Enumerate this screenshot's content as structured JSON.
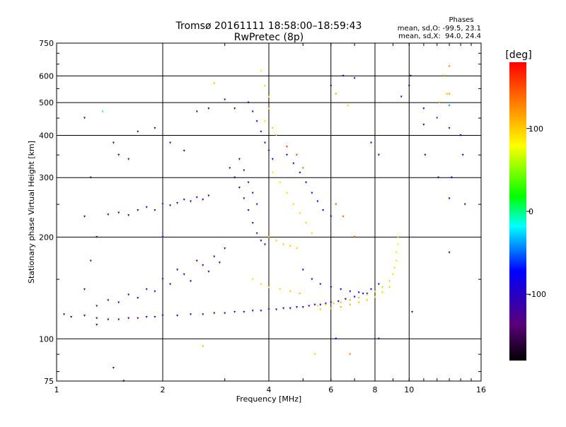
{
  "chart_data": {
    "type": "scatter",
    "title": "Tromsø 20161111 18:58:00–18:59:43",
    "subtitle": "RwPretec (8p)",
    "stats_header": "Phases",
    "stats_line1": "mean, sd,O: -99.5, 23.1",
    "stats_line2": "mean, sd,X:  94.0, 24.4",
    "xlabel": "Frequency [MHz]",
    "ylabel": "Stationary phase Virtual Height [km]",
    "xscale": "log",
    "yscale": "log",
    "xlim": [
      1,
      16
    ],
    "ylim": [
      75,
      750
    ],
    "x_ticks": [
      1,
      2,
      4,
      6,
      8,
      10,
      16
    ],
    "x_tick_labels": [
      "1",
      "2",
      "4",
      "6",
      "8",
      "10",
      "16"
    ],
    "y_ticks": [
      75,
      100,
      200,
      300,
      400,
      500,
      600,
      750
    ],
    "y_tick_labels": [
      "75",
      "100",
      "200",
      "300",
      "400",
      "500",
      "600",
      "750"
    ],
    "grid": true,
    "colorbar": {
      "label": "[deg]",
      "range": [
        -180,
        180
      ],
      "ticks": [
        100,
        0,
        -100
      ],
      "tick_labels": [
        "100",
        "0",
        "-100"
      ],
      "colors": [
        "#000000",
        "#5a0078",
        "#0000ff",
        "#00ffff",
        "#00ff00",
        "#ffff00",
        "#ff8000",
        "#ff0000"
      ]
    },
    "series": [
      {
        "description_key": "ordinary",
        "points": [
          [
            1.05,
            118,
            -110
          ],
          [
            1.1,
            116,
            -120
          ],
          [
            1.2,
            117,
            -115
          ],
          [
            1.3,
            115,
            -125
          ],
          [
            1.4,
            114,
            -118
          ],
          [
            1.5,
            114,
            -130
          ],
          [
            1.6,
            115,
            -122
          ],
          [
            1.7,
            115,
            -128
          ],
          [
            1.8,
            116,
            -110
          ],
          [
            1.9,
            116,
            -112
          ],
          [
            2.0,
            117,
            -108
          ],
          [
            2.2,
            117,
            -105
          ],
          [
            2.4,
            118,
            -110
          ],
          [
            2.6,
            118,
            -100
          ],
          [
            2.8,
            119,
            -98
          ],
          [
            3.0,
            119,
            -105
          ],
          [
            3.2,
            120,
            -102
          ],
          [
            3.4,
            120,
            -95
          ],
          [
            3.6,
            121,
            -100
          ],
          [
            3.8,
            121,
            -92
          ],
          [
            4.0,
            122,
            -95
          ],
          [
            4.2,
            122,
            -90
          ],
          [
            4.4,
            123,
            -92
          ],
          [
            4.6,
            123,
            -88
          ],
          [
            4.8,
            124,
            -90
          ],
          [
            5.0,
            124,
            -85
          ],
          [
            5.2,
            125,
            -88
          ],
          [
            5.4,
            126,
            -80
          ],
          [
            5.6,
            126,
            -84
          ],
          [
            5.8,
            127,
            -82
          ],
          [
            6.0,
            128,
            -78
          ],
          [
            6.3,
            129,
            -80
          ],
          [
            6.6,
            131,
            -82
          ],
          [
            7.0,
            133,
            -85
          ],
          [
            7.4,
            136,
            -88
          ],
          [
            7.8,
            140,
            -90
          ],
          [
            8.2,
            145,
            -92
          ],
          [
            1.3,
            125,
            -115
          ],
          [
            1.4,
            130,
            -120
          ],
          [
            1.5,
            128,
            -118
          ],
          [
            1.6,
            135,
            -110
          ],
          [
            1.7,
            132,
            -122
          ],
          [
            1.8,
            140,
            -116
          ],
          [
            1.9,
            138,
            -118
          ],
          [
            2.0,
            150,
            -110
          ],
          [
            2.1,
            145,
            -112
          ],
          [
            2.2,
            160,
            -108
          ],
          [
            2.3,
            155,
            -105
          ],
          [
            2.4,
            148,
            -110
          ],
          [
            2.5,
            170,
            -100
          ],
          [
            2.6,
            165,
            -104
          ],
          [
            2.7,
            158,
            -108
          ],
          [
            2.8,
            175,
            -102
          ],
          [
            2.9,
            168,
            -106
          ],
          [
            3.0,
            185,
            -100
          ],
          [
            1.4,
            233,
            -120
          ],
          [
            1.5,
            236,
            -118
          ],
          [
            1.6,
            232,
            -125
          ],
          [
            1.7,
            240,
            -118
          ],
          [
            1.8,
            245,
            -115
          ],
          [
            1.9,
            240,
            -120
          ],
          [
            2.0,
            250,
            -116
          ],
          [
            2.1,
            248,
            -122
          ],
          [
            2.2,
            252,
            -118
          ],
          [
            2.3,
            258,
            -114
          ],
          [
            2.4,
            255,
            -112
          ],
          [
            2.5,
            262,
            -110
          ],
          [
            2.6,
            258,
            -108
          ],
          [
            2.7,
            265,
            -106
          ],
          [
            3.1,
            320,
            -125
          ],
          [
            3.2,
            300,
            -120
          ],
          [
            3.3,
            280,
            -118
          ],
          [
            3.4,
            260,
            -115
          ],
          [
            3.5,
            240,
            -112
          ],
          [
            3.6,
            220,
            -110
          ],
          [
            3.7,
            205,
            -105
          ],
          [
            3.8,
            195,
            -102
          ],
          [
            3.9,
            190,
            -100
          ],
          [
            3.3,
            340,
            -128
          ],
          [
            3.4,
            315,
            -122
          ],
          [
            3.5,
            290,
            -120
          ],
          [
            3.6,
            270,
            -116
          ],
          [
            3.7,
            250,
            -112
          ],
          [
            3.5,
            500,
            -110
          ],
          [
            3.6,
            470,
            -108
          ],
          [
            3.7,
            440,
            -105
          ],
          [
            3.8,
            410,
            -100
          ],
          [
            3.9,
            380,
            -98
          ],
          [
            4.0,
            360,
            -95
          ],
          [
            4.1,
            340,
            -90
          ],
          [
            3.0,
            510,
            -115
          ],
          [
            3.2,
            480,
            -112
          ],
          [
            4.5,
            350,
            -90
          ],
          [
            4.7,
            330,
            -88
          ],
          [
            4.9,
            310,
            -85
          ],
          [
            5.1,
            290,
            -84
          ],
          [
            5.3,
            270,
            -82
          ],
          [
            5.5,
            255,
            -80
          ],
          [
            5.7,
            240,
            -78
          ],
          [
            6.0,
            230,
            -76
          ],
          [
            5.0,
            160,
            -85
          ],
          [
            5.3,
            150,
            -82
          ],
          [
            5.6,
            145,
            -80
          ],
          [
            6.0,
            142,
            -78
          ],
          [
            6.4,
            140,
            -76
          ],
          [
            6.8,
            138,
            -74
          ],
          [
            7.2,
            137,
            -72
          ],
          [
            7.6,
            136,
            -70
          ]
        ]
      },
      {
        "description_key": "extraordinary",
        "points": [
          [
            3.8,
            620,
            90
          ],
          [
            3.9,
            560,
            95
          ],
          [
            4.0,
            520,
            92
          ],
          [
            4.0,
            480,
            96
          ],
          [
            3.9,
            440,
            90
          ],
          [
            4.1,
            420,
            98
          ],
          [
            4.2,
            400,
            92
          ],
          [
            4.1,
            310,
            88
          ],
          [
            4.3,
            290,
            92
          ],
          [
            4.5,
            270,
            95
          ],
          [
            4.7,
            250,
            98
          ],
          [
            4.9,
            235,
            94
          ],
          [
            5.1,
            220,
            96
          ],
          [
            5.3,
            205,
            92
          ],
          [
            4.0,
            200,
            95
          ],
          [
            4.2,
            195,
            98
          ],
          [
            4.4,
            190,
            100
          ],
          [
            4.6,
            188,
            102
          ],
          [
            4.8,
            185,
            98
          ],
          [
            3.6,
            150,
            92
          ],
          [
            3.8,
            145,
            95
          ],
          [
            4.0,
            142,
            90
          ],
          [
            4.3,
            140,
            96
          ],
          [
            4.6,
            138,
            100
          ],
          [
            4.9,
            136,
            104
          ],
          [
            5.5,
            125,
            95
          ],
          [
            5.8,
            126,
            100
          ],
          [
            6.1,
            127,
            105
          ],
          [
            6.4,
            128,
            110
          ],
          [
            6.8,
            130,
            112
          ],
          [
            7.2,
            132,
            108
          ],
          [
            7.6,
            135,
            104
          ],
          [
            8.0,
            138,
            100
          ],
          [
            8.4,
            142,
            98
          ],
          [
            8.8,
            148,
            96
          ],
          [
            9.0,
            155,
            94
          ],
          [
            9.1,
            162,
            92
          ],
          [
            9.2,
            170,
            90
          ],
          [
            9.2,
            180,
            88
          ],
          [
            9.3,
            190,
            86
          ],
          [
            9.3,
            200,
            85
          ],
          [
            5.6,
            122,
            102
          ],
          [
            6.0,
            123,
            108
          ],
          [
            6.4,
            124,
            112
          ],
          [
            6.8,
            126,
            110
          ],
          [
            7.2,
            128,
            106
          ],
          [
            7.6,
            130,
            102
          ],
          [
            8.0,
            133,
            100
          ],
          [
            8.4,
            137,
            98
          ],
          [
            8.8,
            142,
            96
          ],
          [
            7.0,
            200,
            150
          ],
          [
            6.5,
            230,
            140
          ],
          [
            6.2,
            250,
            145
          ],
          [
            4.5,
            370,
            155
          ],
          [
            4.8,
            350,
            150
          ],
          [
            5.0,
            320,
            135
          ],
          [
            13.0,
            640,
            130
          ],
          [
            13.0,
            530,
            120
          ],
          [
            12.2,
            500,
            110
          ],
          [
            6.2,
            530,
            115
          ],
          [
            2.8,
            570,
            110
          ]
        ]
      },
      {
        "description_key": "scattered",
        "points": [
          [
            1.2,
            450,
            -110
          ],
          [
            1.35,
            470,
            -10
          ],
          [
            1.25,
            300,
            -120
          ],
          [
            1.2,
            230,
            -125
          ],
          [
            1.3,
            200,
            -120
          ],
          [
            1.25,
            170,
            -115
          ],
          [
            1.2,
            140,
            -122
          ],
          [
            1.3,
            110,
            -118
          ],
          [
            1.45,
            380,
            -100
          ],
          [
            1.5,
            350,
            -80
          ],
          [
            1.6,
            340,
            -120
          ],
          [
            1.7,
            410,
            -125
          ],
          [
            1.9,
            420,
            -110
          ],
          [
            2.0,
            200,
            -60
          ],
          [
            2.1,
            380,
            -90
          ],
          [
            2.3,
            360,
            -100
          ],
          [
            2.5,
            470,
            -120
          ],
          [
            2.7,
            480,
            -90
          ],
          [
            2.6,
            95,
            110
          ],
          [
            1.45,
            82,
            -120
          ],
          [
            1.55,
            75,
            -130
          ],
          [
            6.0,
            560,
            -110
          ],
          [
            6.5,
            600,
            -100
          ],
          [
            6.7,
            490,
            95
          ],
          [
            7.0,
            590,
            -120
          ],
          [
            7.8,
            380,
            -95
          ],
          [
            8.2,
            350,
            -80
          ],
          [
            9.5,
            520,
            -70
          ],
          [
            10.0,
            560,
            -100
          ],
          [
            10.1,
            600,
            -110
          ],
          [
            11.0,
            480,
            -90
          ],
          [
            11.0,
            430,
            -120
          ],
          [
            11.1,
            350,
            -100
          ],
          [
            12.0,
            450,
            -60
          ],
          [
            12.6,
            600,
            120
          ],
          [
            12.8,
            530,
            110
          ],
          [
            13.0,
            490,
            -40
          ],
          [
            13.0,
            420,
            -110
          ],
          [
            13.0,
            260,
            -90
          ],
          [
            13.2,
            300,
            -95
          ],
          [
            14.0,
            400,
            -95
          ],
          [
            14.2,
            350,
            -80
          ],
          [
            14.4,
            250,
            -120
          ],
          [
            13.0,
            180,
            -110
          ],
          [
            12.1,
            300,
            -120
          ],
          [
            10.2,
            120,
            -100
          ],
          [
            8.2,
            100,
            -120
          ],
          [
            6.8,
            90,
            130
          ],
          [
            6.2,
            100,
            -80
          ],
          [
            5.4,
            90,
            100
          ]
        ]
      }
    ]
  }
}
